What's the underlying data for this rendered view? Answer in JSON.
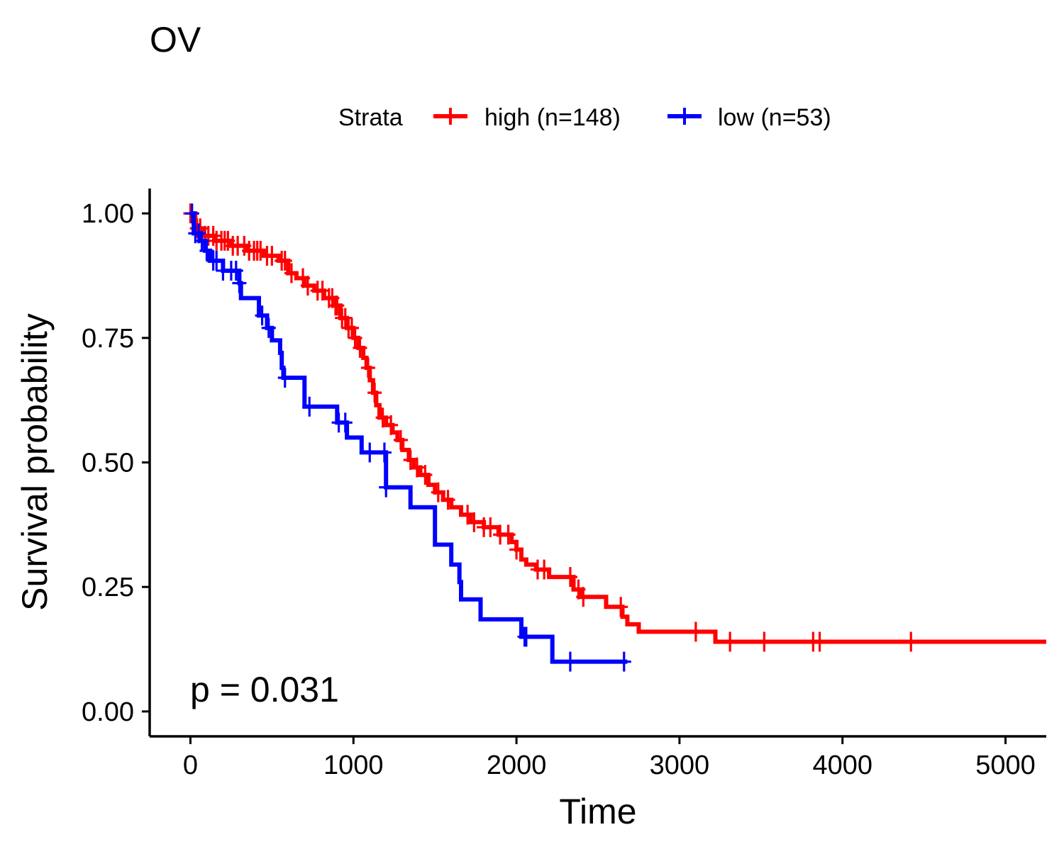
{
  "chart_data": {
    "type": "line",
    "title": "OV",
    "xlabel": "Time",
    "ylabel": "Survival probability",
    "xlim": [
      -250,
      5250
    ],
    "ylim": [
      -0.05,
      1.05
    ],
    "x_ticks": [
      0,
      1000,
      2000,
      3000,
      4000,
      5000
    ],
    "x_tick_labels": [
      "0",
      "1000",
      "2000",
      "3000",
      "4000",
      "5000"
    ],
    "y_ticks": [
      0,
      0.25,
      0.5,
      0.75,
      1.0
    ],
    "y_tick_labels": [
      "0.00",
      "0.25",
      "0.50",
      "0.75",
      "1.00"
    ],
    "grid": false,
    "legend": {
      "title": "Strata",
      "position": "top"
    },
    "annotation": "p = 0.031",
    "series": [
      {
        "name": "high (n=148)",
        "color": "#FF0000",
        "steps": [
          [
            0,
            1.0
          ],
          [
            30,
            0.97
          ],
          [
            80,
            0.955
          ],
          [
            150,
            0.945
          ],
          [
            250,
            0.935
          ],
          [
            350,
            0.925
          ],
          [
            450,
            0.915
          ],
          [
            540,
            0.905
          ],
          [
            600,
            0.88
          ],
          [
            650,
            0.87
          ],
          [
            700,
            0.855
          ],
          [
            760,
            0.845
          ],
          [
            820,
            0.83
          ],
          [
            880,
            0.815
          ],
          [
            920,
            0.79
          ],
          [
            960,
            0.77
          ],
          [
            1000,
            0.75
          ],
          [
            1030,
            0.73
          ],
          [
            1060,
            0.71
          ],
          [
            1080,
            0.69
          ],
          [
            1100,
            0.665
          ],
          [
            1120,
            0.64
          ],
          [
            1140,
            0.615
          ],
          [
            1160,
            0.59
          ],
          [
            1200,
            0.575
          ],
          [
            1240,
            0.56
          ],
          [
            1270,
            0.545
          ],
          [
            1300,
            0.525
          ],
          [
            1340,
            0.505
          ],
          [
            1370,
            0.49
          ],
          [
            1410,
            0.475
          ],
          [
            1460,
            0.455
          ],
          [
            1500,
            0.44
          ],
          [
            1550,
            0.425
          ],
          [
            1600,
            0.41
          ],
          [
            1660,
            0.395
          ],
          [
            1720,
            0.38
          ],
          [
            1800,
            0.37
          ],
          [
            1890,
            0.355
          ],
          [
            1970,
            0.34
          ],
          [
            2000,
            0.325
          ],
          [
            2030,
            0.305
          ],
          [
            2060,
            0.295
          ],
          [
            2120,
            0.285
          ],
          [
            2200,
            0.27
          ],
          [
            2350,
            0.245
          ],
          [
            2400,
            0.23
          ],
          [
            2550,
            0.21
          ],
          [
            2650,
            0.19
          ],
          [
            2680,
            0.175
          ],
          [
            2750,
            0.16
          ],
          [
            3220,
            0.14
          ],
          [
            5250,
            0.14
          ]
        ],
        "censor_times": [
          0,
          40,
          60,
          90,
          110,
          140,
          160,
          190,
          210,
          230,
          260,
          290,
          330,
          360,
          390,
          410,
          430,
          470,
          500,
          560,
          580,
          620,
          690,
          720,
          780,
          810,
          850,
          870,
          890,
          900,
          930,
          950,
          970,
          990,
          1010,
          1040,
          1090,
          1130,
          1180,
          1230,
          1290,
          1350,
          1390,
          1440,
          1520,
          1580,
          1700,
          1740,
          1800,
          1840,
          1900,
          1950,
          2000,
          2130,
          2170,
          2330,
          2380,
          2410,
          2640,
          3100,
          3310,
          3520,
          3820,
          3860,
          4420
        ]
      },
      {
        "name": "low (n=53)",
        "color": "#0000FF",
        "steps": [
          [
            0,
            1.0
          ],
          [
            20,
            0.96
          ],
          [
            60,
            0.945
          ],
          [
            90,
            0.925
          ],
          [
            120,
            0.905
          ],
          [
            200,
            0.885
          ],
          [
            300,
            0.86
          ],
          [
            310,
            0.83
          ],
          [
            420,
            0.795
          ],
          [
            470,
            0.77
          ],
          [
            500,
            0.745
          ],
          [
            550,
            0.72
          ],
          [
            560,
            0.69
          ],
          [
            570,
            0.67
          ],
          [
            700,
            0.612
          ],
          [
            900,
            0.58
          ],
          [
            960,
            0.55
          ],
          [
            1050,
            0.52
          ],
          [
            1200,
            0.45
          ],
          [
            1350,
            0.41
          ],
          [
            1500,
            0.335
          ],
          [
            1600,
            0.295
          ],
          [
            1650,
            0.26
          ],
          [
            1660,
            0.225
          ],
          [
            1780,
            0.185
          ],
          [
            2030,
            0.15
          ],
          [
            2220,
            0.1
          ],
          [
            2680,
            0.1
          ]
        ],
        "censor_times": [
          10,
          30,
          50,
          70,
          100,
          140,
          160,
          200,
          250,
          280,
          300,
          440,
          480,
          580,
          730,
          910,
          950,
          1100,
          1190,
          1200,
          2050,
          2060,
          2330,
          2660
        ]
      }
    ]
  }
}
